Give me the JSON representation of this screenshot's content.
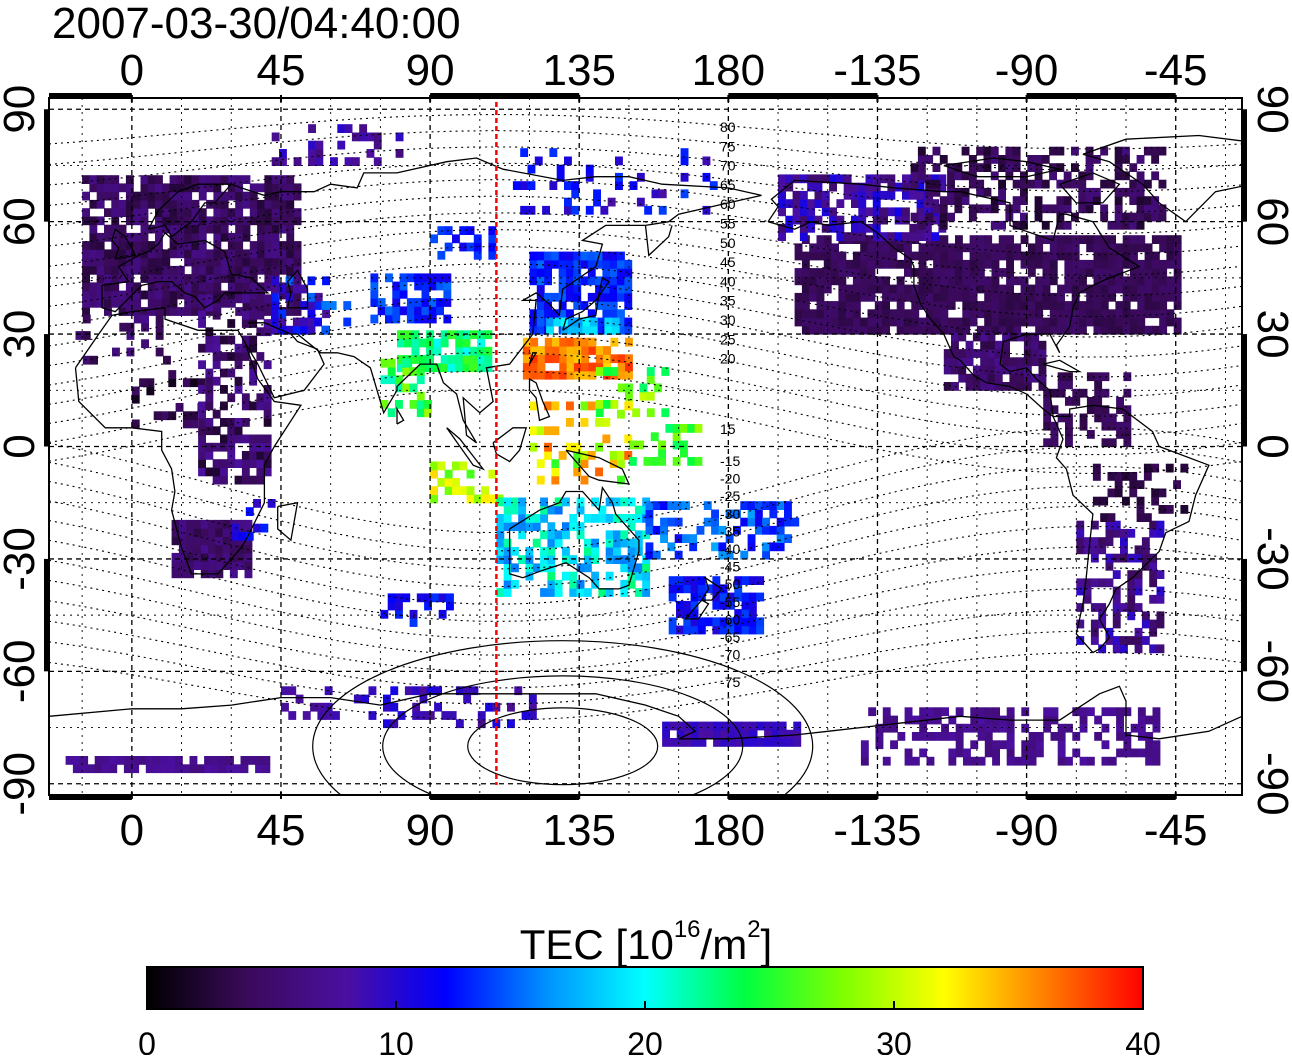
{
  "title": "2007-03-30/04:40:00",
  "map": {
    "top_lon_ticks": [
      "0",
      "45",
      "90",
      "135",
      "180",
      "-135",
      "-90",
      "-45"
    ],
    "bottom_lon_ticks": [
      "0",
      "45",
      "90",
      "135",
      "180",
      "-135",
      "-90",
      "-45"
    ],
    "left_lat_ticks": [
      "90",
      "60",
      "30",
      "0",
      "-30",
      "-60",
      "-90"
    ],
    "right_lat_ticks": [
      "90",
      "60",
      "30",
      "0",
      "-30",
      "-60",
      "-90"
    ],
    "lon_range": [
      -25,
      335
    ],
    "lat_range": [
      -93,
      93
    ],
    "marker_longitude": 110,
    "marker_color": "#ff0000",
    "contour_labels_north": [
      "80",
      "75",
      "70",
      "65",
      "60",
      "55",
      "50",
      "45",
      "40",
      "35",
      "30",
      "25",
      "20",
      "15"
    ],
    "contour_labels_south": [
      "-15",
      "-20",
      "-25",
      "-30",
      "-35",
      "-40",
      "-45",
      "-50",
      "-55",
      "-60",
      "-65",
      "-70",
      "-75"
    ]
  },
  "colorbar": {
    "label_prefix": "TEC  [10",
    "label_exp1": "16",
    "label_mid": "/m",
    "label_exp2": "2",
    "label_suffix": "]",
    "min": 0,
    "max": 40,
    "ticks": [
      "0",
      "10",
      "20",
      "30",
      "40"
    ],
    "colors": [
      "#000000",
      "#3a0a5a",
      "#4b0fa0",
      "#0000ff",
      "#0090ff",
      "#00ffff",
      "#00ff40",
      "#80ff00",
      "#ffff00",
      "#ff8000",
      "#ff0000"
    ]
  }
}
